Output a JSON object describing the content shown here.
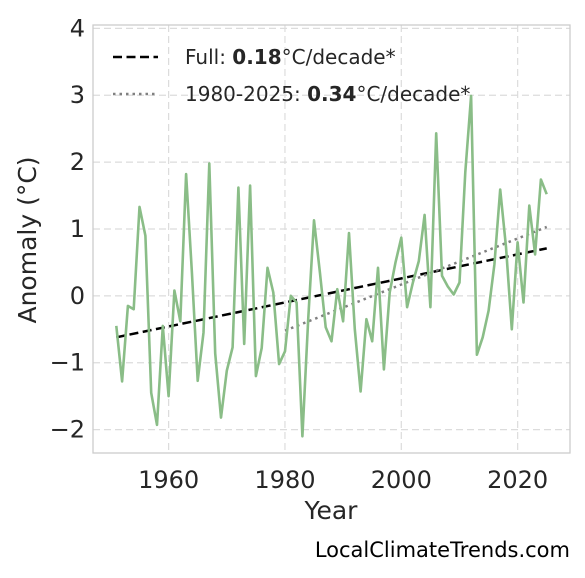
{
  "chart_data": {
    "type": "line",
    "xlabel": "Year",
    "ylabel": "Anomaly (°C)",
    "xlim": [
      1947,
      2029
    ],
    "ylim": [
      -2.35,
      4.05
    ],
    "xticks": [
      1960,
      1980,
      2000,
      2020
    ],
    "yticks": [
      -2,
      -1,
      0,
      1,
      2,
      3,
      4
    ],
    "ytick_labels": [
      "−2",
      "−1",
      "0",
      "1",
      "2",
      "3",
      "4"
    ],
    "grid": true,
    "legend_position": "top-left",
    "colors": {
      "series": "#8abd87",
      "full_trend": "#000000",
      "recent_trend": "#808080"
    },
    "series": [
      {
        "x": [
          1951,
          1952,
          1953,
          1954,
          1955,
          1956,
          1957,
          1958,
          1959,
          1960,
          1961,
          1962,
          1963,
          1964,
          1965,
          1966,
          1967,
          1968,
          1969,
          1970,
          1971,
          1972,
          1973,
          1974,
          1975,
          1976,
          1977,
          1978,
          1979,
          1980,
          1981,
          1982,
          1983,
          1984,
          1985,
          1986,
          1987,
          1988,
          1989,
          1990,
          1991,
          1992,
          1993,
          1994,
          1995,
          1996,
          1997,
          1998,
          1999,
          2000,
          2001,
          2002,
          2003,
          2004,
          2005,
          2006,
          2007,
          2008,
          2009,
          2010,
          2011,
          2012,
          2013,
          2014,
          2015,
          2016,
          2017,
          2018,
          2019,
          2020,
          2021,
          2022,
          2023,
          2024,
          2025
        ],
        "y": [
          -0.45,
          -1.28,
          -0.15,
          -0.2,
          1.33,
          0.9,
          -1.45,
          -1.93,
          -0.45,
          -1.5,
          0.08,
          -0.38,
          1.82,
          0.35,
          -1.27,
          -0.55,
          1.98,
          -0.86,
          -1.82,
          -1.12,
          -0.77,
          1.62,
          -0.72,
          1.65,
          -1.2,
          -0.78,
          0.42,
          0.05,
          -1.02,
          -0.83,
          0.0,
          -0.1,
          -2.1,
          -0.35,
          1.13,
          0.35,
          -0.47,
          -0.68,
          0.1,
          -0.38,
          0.94,
          -0.5,
          -1.43,
          -0.35,
          -0.68,
          0.42,
          -1.1,
          0.05,
          0.5,
          0.87,
          -0.17,
          0.2,
          0.52,
          1.21,
          -0.17,
          2.43,
          0.3,
          0.14,
          0.02,
          0.2,
          1.85,
          2.99,
          -0.88,
          -0.62,
          -0.22,
          0.47,
          1.59,
          0.73,
          -0.5,
          0.8,
          -0.1,
          1.35,
          0.62,
          1.74,
          1.52
        ]
      }
    ],
    "trends": [
      {
        "label_prefix": "Full: ",
        "label_value": "0.18",
        "label_suffix": "°C/decade*",
        "style": "dashed",
        "x": [
          1951,
          2025
        ],
        "y": [
          -0.62,
          0.71
        ]
      },
      {
        "label_prefix": "1980-2025: ",
        "label_value": "0.34",
        "label_suffix": "°C/decade*",
        "style": "dotted",
        "x": [
          1980,
          2025
        ],
        "y": [
          -0.52,
          1.03
        ]
      }
    ]
  },
  "watermark": "LocalClimateTrends.com"
}
